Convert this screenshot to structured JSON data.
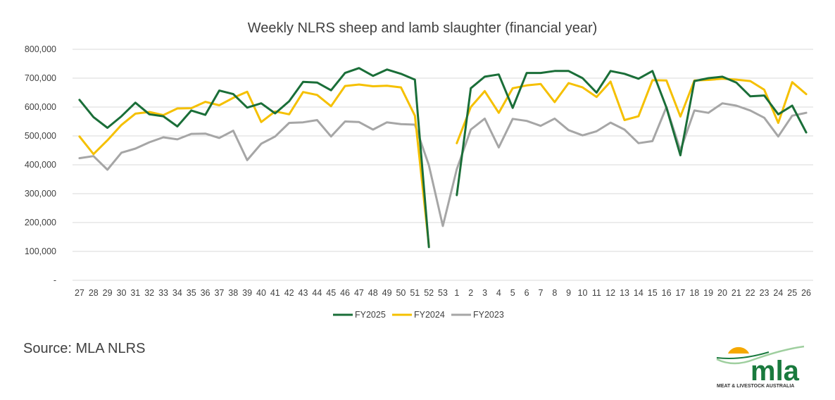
{
  "chart_data": {
    "type": "line",
    "title": "Weekly NLRS sheep and lamb slaughter (financial year)",
    "xlabel": "",
    "ylabel": "",
    "ylim": [
      0,
      800000
    ],
    "yticks": [
      "-",
      "100,000",
      "200,000",
      "300,000",
      "400,000",
      "500,000",
      "600,000",
      "700,000",
      "800,000"
    ],
    "categories": [
      "27",
      "28",
      "29",
      "30",
      "31",
      "32",
      "33",
      "34",
      "35",
      "36",
      "37",
      "38",
      "39",
      "40",
      "41",
      "42",
      "43",
      "44",
      "45",
      "46",
      "47",
      "48",
      "49",
      "50",
      "51",
      "52",
      "53",
      "1",
      "2",
      "3",
      "4",
      "5",
      "6",
      "7",
      "8",
      "9",
      "10",
      "11",
      "12",
      "13",
      "14",
      "15",
      "16",
      "17",
      "18",
      "19",
      "20",
      "21",
      "22",
      "23",
      "24",
      "25",
      "26"
    ],
    "grid": true,
    "legend_position": "bottom",
    "series": [
      {
        "name": "FY2025",
        "color": "#1a6e38",
        "values": [
          625000,
          565000,
          528000,
          568000,
          615000,
          575000,
          568000,
          533000,
          588000,
          573000,
          657000,
          645000,
          598000,
          613000,
          578000,
          620000,
          687000,
          685000,
          658000,
          718000,
          735000,
          708000,
          730000,
          715000,
          695000,
          115000,
          null,
          295000,
          665000,
          705000,
          713000,
          597000,
          718000,
          718000,
          725000,
          725000,
          700000,
          650000,
          725000,
          715000,
          698000,
          725000,
          598000,
          433000,
          690000,
          700000,
          705000,
          685000,
          637000,
          640000,
          575000,
          605000,
          512000
        ]
      },
      {
        "name": "FY2024",
        "color": "#f5c000",
        "values": [
          498000,
          437000,
          485000,
          538000,
          577000,
          583000,
          572000,
          595000,
          596000,
          618000,
          606000,
          632000,
          653000,
          548000,
          585000,
          575000,
          652000,
          642000,
          603000,
          673000,
          678000,
          672000,
          674000,
          668000,
          570000,
          120000,
          null,
          475000,
          600000,
          655000,
          580000,
          665000,
          675000,
          680000,
          617000,
          683000,
          668000,
          635000,
          688000,
          555000,
          568000,
          693000,
          692000,
          567000,
          692000,
          694000,
          698000,
          695000,
          690000,
          660000,
          545000,
          686000,
          645000
        ]
      },
      {
        "name": "FY2023",
        "color": "#a6a6a6",
        "values": [
          423000,
          430000,
          383000,
          442000,
          456000,
          478000,
          495000,
          488000,
          507000,
          508000,
          493000,
          518000,
          416000,
          473000,
          498000,
          545000,
          547000,
          555000,
          498000,
          550000,
          548000,
          522000,
          547000,
          541000,
          539000,
          398000,
          188000,
          385000,
          522000,
          560000,
          460000,
          559000,
          552000,
          535000,
          560000,
          520000,
          502000,
          516000,
          546000,
          522000,
          475000,
          482000,
          600000,
          450000,
          588000,
          580000,
          613000,
          605000,
          588000,
          563000,
          498000,
          570000,
          580000
        ]
      }
    ]
  },
  "source": "Source: MLA NLRS",
  "logo": {
    "word": "mla",
    "subtitle": "MEAT & LIVESTOCK AUSTRALIA"
  }
}
